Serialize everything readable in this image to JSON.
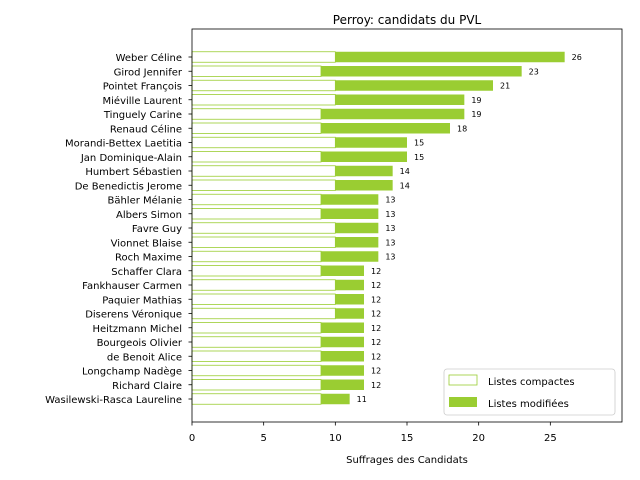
{
  "chart_data": {
    "type": "bar",
    "orientation": "horizontal",
    "stacked": true,
    "title": "Perroy: candidats du PVL",
    "xlabel": "Suffrages des Candidats",
    "ylabel": "",
    "xlim": [
      0,
      30
    ],
    "xticks": [
      0,
      5,
      10,
      15,
      20,
      25
    ],
    "grid": false,
    "legend_position": "bottom-right",
    "categories": [
      "Weber Céline",
      "Girod Jennifer",
      "Pointet François",
      "Miéville Laurent",
      "Tinguely Carine",
      "Renaud Céline",
      "Morandi-Bettex Laetitia",
      "Jan Dominique-Alain",
      "Humbert Sébastien",
      "De Benedictis Jerome",
      "Bähler Mélanie",
      "Albers Simon",
      "Favre Guy",
      "Vionnet Blaise",
      "Roch Maxime",
      "Schaffer Clara",
      "Fankhauser Carmen",
      "Paquier Mathias",
      "Diserens Véronique",
      "Heitzmann Michel",
      "Bourgeois Olivier",
      "de Benoit Alice",
      "Longchamp Nadège",
      "Richard Claire",
      "Wasilewski-Rasca Laureline"
    ],
    "series": [
      {
        "name": "Listes compactes",
        "color": "#ffffff",
        "edge_color": "#9acd32",
        "values": [
          10,
          9,
          10,
          10,
          9,
          9,
          10,
          9,
          10,
          10,
          9,
          9,
          10,
          10,
          9,
          9,
          10,
          10,
          10,
          9,
          9,
          9,
          9,
          9,
          9
        ]
      },
      {
        "name": "Listes modifiées",
        "color": "#9acd32",
        "values": [
          16,
          14,
          11,
          9,
          10,
          9,
          5,
          6,
          4,
          4,
          4,
          4,
          3,
          3,
          4,
          3,
          2,
          2,
          2,
          3,
          3,
          3,
          3,
          3,
          2
        ]
      }
    ],
    "totals": [
      26,
      23,
      21,
      19,
      19,
      18,
      15,
      15,
      14,
      14,
      13,
      13,
      13,
      13,
      13,
      12,
      12,
      12,
      12,
      12,
      12,
      12,
      12,
      12,
      11
    ]
  }
}
